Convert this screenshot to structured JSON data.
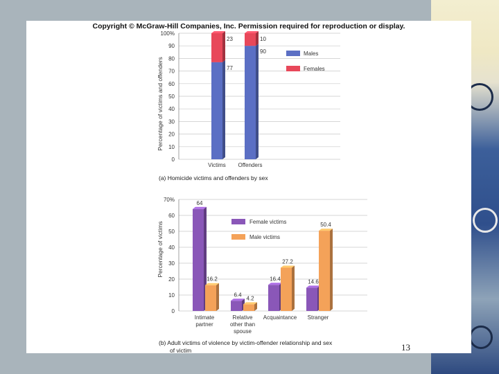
{
  "copyright": "Copyright © McGraw-Hill Companies, Inc. Permission required for reproduction or display.",
  "page_number": "13",
  "colors": {
    "males": "#5b6fc4",
    "females": "#e8485a",
    "female_victims": "#8a57b8",
    "male_victims": "#f4a259"
  },
  "chart_data": [
    {
      "type": "bar",
      "stacked": true,
      "caption": "(a)  Homicide victims and offenders by sex",
      "ylabel": "Percentage of victims and offenders",
      "ylim": [
        0,
        100
      ],
      "yticks": [
        "0",
        "10",
        "20",
        "30",
        "40",
        "50",
        "60",
        "70",
        "80",
        "90",
        "100%"
      ],
      "categories": [
        "Victims",
        "Offenders"
      ],
      "series": [
        {
          "name": "Males",
          "values": [
            77,
            90
          ]
        },
        {
          "name": "Females",
          "values": [
            23,
            10
          ]
        }
      ],
      "legend": [
        "Males",
        "Females"
      ]
    },
    {
      "type": "bar",
      "stacked": false,
      "caption": "(b)  Adult victims of violence by victim-offender relationship and sex of victim",
      "ylabel": "Percentage of victims",
      "ylim": [
        0,
        70
      ],
      "yticks": [
        "0",
        "10",
        "20",
        "30",
        "40",
        "50",
        "60",
        "70%"
      ],
      "categories": [
        [
          "Intimate",
          "partner"
        ],
        [
          "Relative",
          "other than",
          "spouse"
        ],
        [
          "Acquaintance"
        ],
        [
          "Stranger"
        ]
      ],
      "series": [
        {
          "name": "Female victims",
          "values": [
            64,
            6.4,
            16.4,
            14.6
          ]
        },
        {
          "name": "Male victims",
          "values": [
            16.2,
            4.2,
            27.2,
            50.4
          ]
        }
      ],
      "value_labels": [
        [
          "64",
          "6.4",
          "16.4",
          "14.6"
        ],
        [
          "16.2",
          "4.2",
          "27.2",
          "50.4"
        ]
      ],
      "legend": [
        "Female victims",
        "Male victims"
      ]
    }
  ]
}
